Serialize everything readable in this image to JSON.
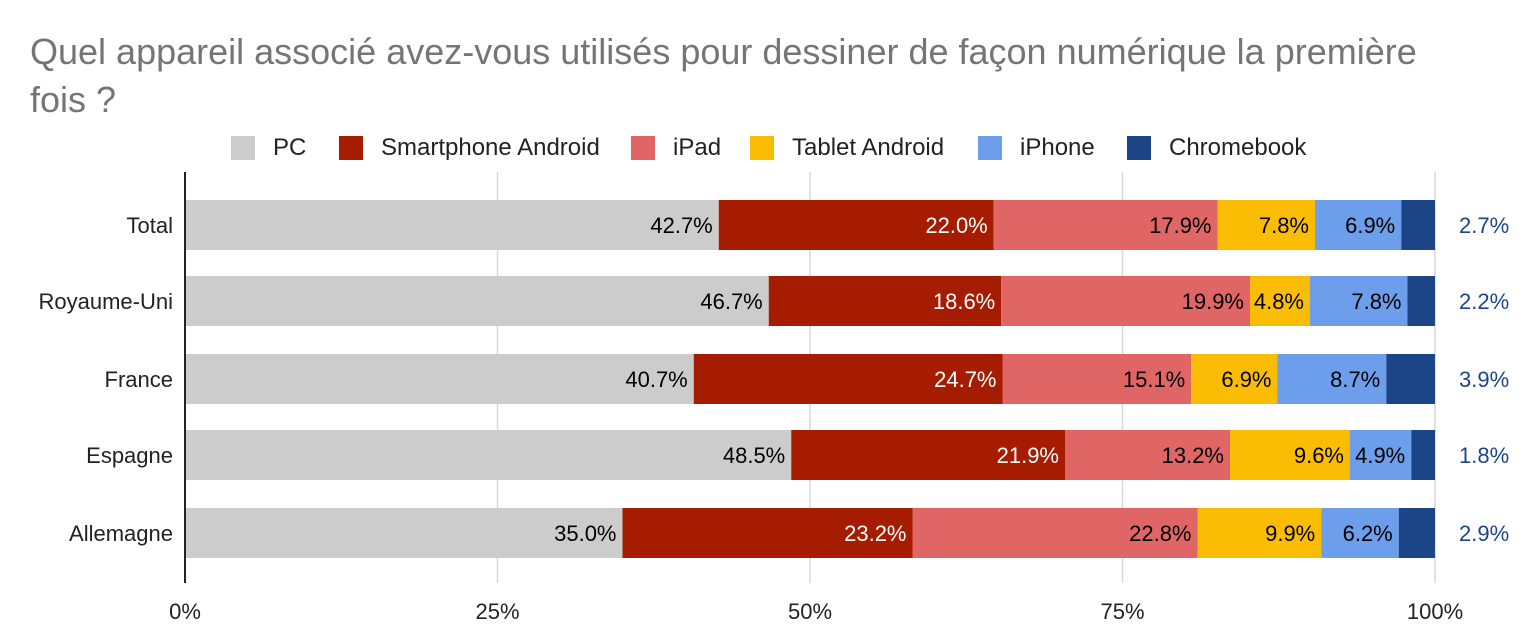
{
  "chart_data": {
    "type": "bar",
    "orientation": "horizontal",
    "stacked": "percent",
    "title": "Quel appareil associé avez-vous utilisés pour dessiner de façon numérique la première fois ?",
    "categories": [
      "Total",
      "Royaume-Uni",
      "France",
      "Espagne",
      "Allemagne"
    ],
    "series": [
      {
        "name": "PC",
        "color": "#cccccc",
        "label_color": "#000000",
        "values": [
          42.7,
          46.7,
          40.7,
          48.5,
          35.0
        ],
        "labels": [
          "42.7%",
          "46.7%",
          "40.7%",
          "48.5%",
          "35.0%"
        ]
      },
      {
        "name": "Smartphone Android",
        "color": "#a61c00",
        "label_color": "#ffffff",
        "values": [
          22.0,
          18.6,
          24.7,
          21.9,
          23.2
        ],
        "labels": [
          "22.0%",
          "18.6%",
          "24.7%",
          "21.9%",
          "23.2%"
        ]
      },
      {
        "name": "iPad",
        "color": "#e06666",
        "label_color": "#000000",
        "values": [
          17.9,
          19.9,
          15.1,
          13.2,
          22.8
        ],
        "labels": [
          "17.9%",
          "19.9%",
          "15.1%",
          "13.2%",
          "22.8%"
        ]
      },
      {
        "name": "Tablet Android",
        "color": "#fbbc04",
        "label_color": "#000000",
        "values": [
          7.8,
          4.8,
          6.9,
          9.6,
          9.9
        ],
        "labels": [
          "7.8%",
          "4.8%",
          "6.9%",
          "9.6%",
          "9.9%"
        ]
      },
      {
        "name": "iPhone",
        "color": "#6d9eeb",
        "label_color": "#000000",
        "values": [
          6.9,
          7.8,
          8.7,
          4.9,
          6.2
        ],
        "labels": [
          "6.9%",
          "7.8%",
          "8.7%",
          "4.9%",
          "6.2%"
        ]
      },
      {
        "name": "Chromebook",
        "color": "#1c4587",
        "label_color": "#1c4587",
        "values": [
          2.7,
          2.2,
          3.9,
          1.8,
          2.9
        ],
        "labels": [
          "2.7%",
          "2.2%",
          "3.9%",
          "1.8%",
          "2.9%"
        ]
      }
    ],
    "xlim": [
      0,
      100
    ],
    "x_ticks": [
      "0%",
      "25%",
      "50%",
      "75%",
      "100%"
    ],
    "legend_position": "top",
    "grid": true
  }
}
